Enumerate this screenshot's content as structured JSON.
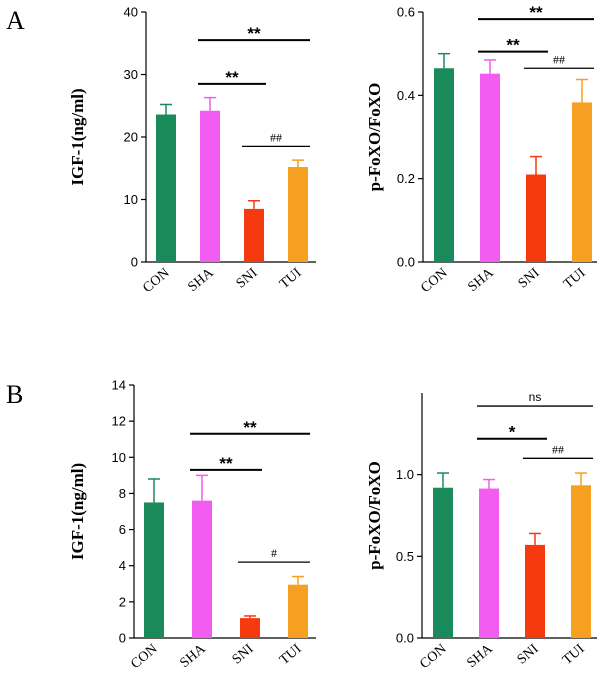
{
  "panel_labels": [
    "A",
    "B"
  ],
  "colors": {
    "CON": "#1a8a5a",
    "SHA": "#f25cf0",
    "SNI": "#f53a10",
    "TUI": "#f5a020"
  },
  "chart_data": [
    {
      "type": "bar",
      "panel": "A",
      "ylabel": "IGF-1(ng/ml)",
      "categories": [
        "CON",
        "SHA",
        "SNI",
        "TUI"
      ],
      "values": [
        23.6,
        24.2,
        8.5,
        15.2
      ],
      "errors": [
        1.6,
        2.1,
        1.3,
        1.1
      ],
      "ylim": [
        0,
        40
      ],
      "yticks": [
        0,
        10,
        20,
        30,
        40
      ],
      "ytick_labels": [
        "0",
        "10",
        "20",
        "30",
        "40"
      ],
      "annotations": [
        {
          "from": 1,
          "to": 3,
          "label": "**",
          "y": 35.5
        },
        {
          "from": 1,
          "to": 2,
          "label": "**",
          "y": 28.5
        },
        {
          "from": 2,
          "to": 3,
          "label": "##",
          "y": 18.5
        }
      ]
    },
    {
      "type": "bar",
      "panel": "A",
      "ylabel": "p-FoXO/FoXO",
      "categories": [
        "CON",
        "SHA",
        "SNI",
        "TUI"
      ],
      "values": [
        0.465,
        0.452,
        0.21,
        0.383
      ],
      "errors": [
        0.035,
        0.033,
        0.043,
        0.055
      ],
      "ylim": [
        0,
        0.6
      ],
      "yticks": [
        0,
        0.2,
        0.4,
        0.6
      ],
      "ytick_labels": [
        "0.0",
        "0.2",
        "0.4",
        "0.6"
      ],
      "annotations": [
        {
          "from": 1,
          "to": 3,
          "label": "**",
          "y": 0.583
        },
        {
          "from": 1,
          "to": 2,
          "label": "**",
          "y": 0.505
        },
        {
          "from": 2,
          "to": 3,
          "label": "##",
          "y": 0.465
        }
      ]
    },
    {
      "type": "bar",
      "panel": "B",
      "ylabel": "IGF-1(ng/ml)",
      "categories": [
        "CON",
        "SHA",
        "SNI",
        "TUI"
      ],
      "values": [
        7.5,
        7.6,
        1.1,
        2.95
      ],
      "errors": [
        1.3,
        1.4,
        0.12,
        0.45
      ],
      "ylim": [
        0,
        14
      ],
      "yticks": [
        0,
        2,
        4,
        6,
        8,
        10,
        12,
        14
      ],
      "ytick_labels": [
        "0",
        "2",
        "4",
        "6",
        "8",
        "10",
        "12",
        "14"
      ],
      "annotations": [
        {
          "from": 1,
          "to": 3,
          "label": "**",
          "y": 11.3
        },
        {
          "from": 1,
          "to": 2,
          "label": "**",
          "y": 9.3
        },
        {
          "from": 2,
          "to": 3,
          "label": "#",
          "y": 4.2
        }
      ]
    },
    {
      "type": "bar",
      "panel": "B",
      "ylabel": "p-FoXO/FoXO",
      "categories": [
        "CON",
        "SHA",
        "SNI",
        "TUI"
      ],
      "values": [
        0.92,
        0.915,
        0.57,
        0.935
      ],
      "errors": [
        0.09,
        0.055,
        0.07,
        0.075
      ],
      "ylim": [
        0,
        1.5
      ],
      "yticks": [
        0,
        0.5,
        1.0
      ],
      "ytick_labels": [
        "0.0",
        "0.5",
        "1.0"
      ],
      "annotations": [
        {
          "from": 1,
          "to": 3,
          "label": "ns",
          "y": 1.42
        },
        {
          "from": 1,
          "to": 2,
          "label": "*",
          "y": 1.22
        },
        {
          "from": 2,
          "to": 3,
          "label": "##",
          "y": 1.1
        }
      ]
    }
  ]
}
